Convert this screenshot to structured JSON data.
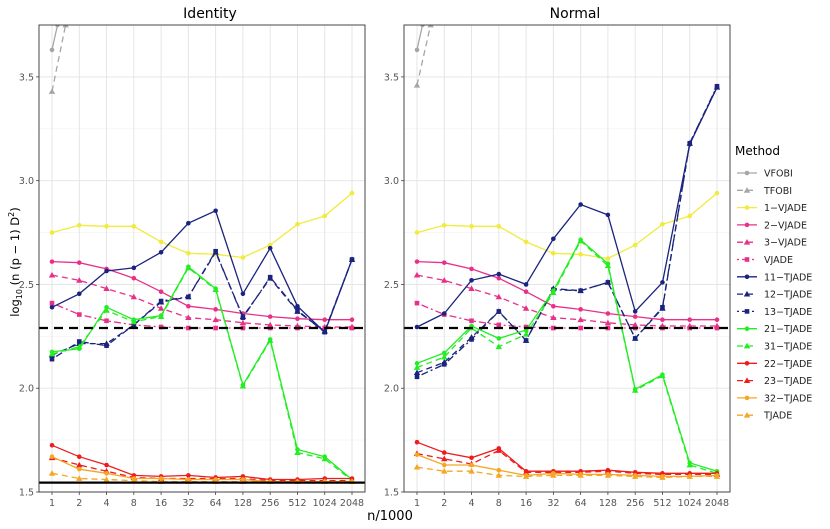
{
  "chart_data": {
    "type": "line",
    "ylabel_main": "log",
    "ylabel_sub": "10",
    "ylabel_rest": " (n (p − 1) D",
    "ylabel_sup": "2",
    "ylabel_close": ")",
    "xlabel": "n/1000",
    "x_ticks": [
      "1",
      "2",
      "4",
      "8",
      "16",
      "32",
      "64",
      "128",
      "256",
      "512",
      "1024",
      "2048"
    ],
    "ylim": [
      1.5,
      3.75
    ],
    "y_ticks": [
      "1.5",
      "2.0",
      "2.5",
      "3.0",
      "3.5"
    ],
    "y_tick_values": [
      1.5,
      2.0,
      2.5,
      3.0,
      3.5
    ],
    "legend_title": "Method",
    "legend_position": "right",
    "legend": [
      {
        "name": "VFOBI",
        "color": "#a6a6a6",
        "dash": "solid",
        "marker": "circle"
      },
      {
        "name": "TFOBI",
        "color": "#a6a6a6",
        "dash": "dash",
        "marker": "triangle"
      },
      {
        "name": "1−VJADE",
        "color": "#f0eb3c",
        "dash": "solid",
        "marker": "circle"
      },
      {
        "name": "2−VJADE",
        "color": "#e8308a",
        "dash": "solid",
        "marker": "circle"
      },
      {
        "name": "3−VJADE",
        "color": "#e8308a",
        "dash": "dash",
        "marker": "triangle"
      },
      {
        "name": "VJADE",
        "color": "#e8308a",
        "dash": "dotdash",
        "marker": "square"
      },
      {
        "name": "11−TJADE",
        "color": "#1a237e",
        "dash": "solid",
        "marker": "circle"
      },
      {
        "name": "12−TJADE",
        "color": "#1a237e",
        "dash": "dash",
        "marker": "triangle"
      },
      {
        "name": "13−TJADE",
        "color": "#1a237e",
        "dash": "dotdash",
        "marker": "square"
      },
      {
        "name": "21−TJADE",
        "color": "#22ee22",
        "dash": "solid",
        "marker": "circle"
      },
      {
        "name": "31−TJADE",
        "color": "#22ee22",
        "dash": "dash",
        "marker": "triangle"
      },
      {
        "name": "22−TJADE",
        "color": "#ee1c1c",
        "dash": "solid",
        "marker": "circle"
      },
      {
        "name": "23−TJADE",
        "color": "#ee1c1c",
        "dash": "dash",
        "marker": "triangle"
      },
      {
        "name": "32−TJADE",
        "color": "#f5a623",
        "dash": "solid",
        "marker": "circle"
      },
      {
        "name": "TJADE",
        "color": "#f5a623",
        "dash": "dash",
        "marker": "triangle"
      }
    ],
    "panels": [
      {
        "title": "Identity",
        "hlines": [
          {
            "y": 2.29,
            "style": "dash"
          },
          {
            "y": 1.545,
            "style": "solid"
          }
        ],
        "series": {
          "VFOBI": {
            "x": [
              0,
              0.2
            ],
            "y": [
              3.63,
              3.75
            ]
          },
          "TFOBI": {
            "x": [
              0,
              0.5
            ],
            "y": [
              3.43,
              3.75
            ]
          },
          "1−VJADE": [
            2.75,
            2.785,
            2.78,
            2.78,
            2.705,
            2.65,
            2.645,
            2.63,
            2.69,
            2.79,
            2.83,
            2.94
          ],
          "2−VJADE": [
            2.61,
            2.605,
            2.575,
            2.53,
            2.465,
            2.395,
            2.38,
            2.36,
            2.345,
            2.335,
            2.33,
            2.33
          ],
          "3−VJADE": [
            2.545,
            2.52,
            2.48,
            2.44,
            2.385,
            2.34,
            2.33,
            2.315,
            2.305,
            2.3,
            2.295,
            2.295
          ],
          "VJADE": [
            2.41,
            2.355,
            2.325,
            2.305,
            2.295,
            2.29,
            2.29,
            2.29,
            2.29,
            2.29,
            2.29,
            2.29
          ],
          "11−TJADE": [
            2.39,
            2.455,
            2.565,
            2.58,
            2.655,
            2.795,
            2.855,
            2.455,
            2.675,
            2.395,
            2.27,
            2.62
          ],
          "12−TJADE": [
            2.16,
            2.215,
            2.215,
            2.305,
            2.415,
            2.44,
            2.655,
            2.345,
            2.53,
            2.37,
            2.275,
            2.62
          ],
          "13−TJADE": [
            2.14,
            2.225,
            2.205,
            2.305,
            2.42,
            2.44,
            2.66,
            2.34,
            2.535,
            2.375,
            2.27,
            2.62
          ],
          "21−TJADE": [
            2.175,
            2.19,
            2.39,
            2.33,
            2.35,
            2.585,
            2.48,
            2.015,
            2.235,
            1.705,
            1.67,
            1.56
          ],
          "31−TJADE": [
            2.165,
            2.2,
            2.375,
            2.32,
            2.345,
            2.58,
            2.475,
            2.01,
            2.23,
            1.69,
            1.66,
            1.555
          ],
          "22−TJADE": [
            1.725,
            1.67,
            1.63,
            1.58,
            1.575,
            1.58,
            1.57,
            1.575,
            1.56,
            1.56,
            1.565,
            1.565
          ],
          "23−TJADE": [
            1.665,
            1.63,
            1.6,
            1.57,
            1.565,
            1.565,
            1.565,
            1.565,
            1.555,
            1.555,
            1.555,
            1.555
          ],
          "32−TJADE": [
            1.67,
            1.61,
            1.59,
            1.565,
            1.565,
            1.56,
            1.56,
            1.56,
            1.55,
            1.55,
            1.55,
            1.55
          ],
          "TJADE": [
            1.59,
            1.565,
            1.56,
            1.555,
            1.55,
            1.55,
            1.55,
            1.55,
            1.55,
            1.55,
            1.55,
            1.55
          ]
        }
      },
      {
        "title": "Normal",
        "hlines": [
          {
            "y": 2.29,
            "style": "dash"
          }
        ],
        "series": {
          "VFOBI": {
            "x": [
              0,
              0.2
            ],
            "y": [
              3.63,
              3.75
            ]
          },
          "TFOBI": {
            "x": [
              0,
              0.5
            ],
            "y": [
              3.46,
              3.75
            ]
          },
          "1−VJADE": [
            2.75,
            2.785,
            2.78,
            2.78,
            2.705,
            2.65,
            2.645,
            2.625,
            2.69,
            2.79,
            2.83,
            2.94
          ],
          "2−VJADE": [
            2.61,
            2.605,
            2.575,
            2.53,
            2.465,
            2.395,
            2.38,
            2.36,
            2.345,
            2.33,
            2.33,
            2.33
          ],
          "3−VJADE": [
            2.545,
            2.52,
            2.48,
            2.44,
            2.385,
            2.34,
            2.33,
            2.315,
            2.305,
            2.3,
            2.3,
            2.3
          ],
          "VJADE": [
            2.41,
            2.355,
            2.325,
            2.305,
            2.295,
            2.29,
            2.29,
            2.29,
            2.29,
            2.29,
            2.29,
            2.29
          ],
          "11−TJADE": [
            2.295,
            2.36,
            2.52,
            2.55,
            2.5,
            2.72,
            2.885,
            2.835,
            2.37,
            2.51,
            3.175,
            3.45
          ],
          "12−TJADE": [
            2.075,
            2.125,
            2.245,
            2.37,
            2.23,
            2.48,
            2.47,
            2.51,
            2.24,
            2.385,
            3.18,
            3.45
          ],
          "13−TJADE": [
            2.055,
            2.115,
            2.235,
            2.37,
            2.23,
            2.475,
            2.47,
            2.51,
            2.24,
            2.39,
            3.18,
            3.455
          ],
          "21−TJADE": [
            2.12,
            2.17,
            2.3,
            2.24,
            2.28,
            2.47,
            2.715,
            2.6,
            1.995,
            2.065,
            1.64,
            1.6
          ],
          "31−TJADE": [
            2.1,
            2.15,
            2.29,
            2.2,
            2.26,
            2.46,
            2.71,
            2.59,
            1.99,
            2.06,
            1.63,
            1.59
          ],
          "22−TJADE": [
            1.74,
            1.69,
            1.665,
            1.71,
            1.6,
            1.6,
            1.6,
            1.605,
            1.595,
            1.59,
            1.59,
            1.59
          ],
          "23−TJADE": [
            1.685,
            1.66,
            1.635,
            1.7,
            1.595,
            1.595,
            1.595,
            1.6,
            1.59,
            1.585,
            1.585,
            1.585
          ],
          "32−TJADE": [
            1.68,
            1.63,
            1.63,
            1.605,
            1.58,
            1.59,
            1.585,
            1.585,
            1.58,
            1.575,
            1.575,
            1.58
          ],
          "TJADE": [
            1.62,
            1.6,
            1.6,
            1.58,
            1.575,
            1.58,
            1.58,
            1.58,
            1.575,
            1.57,
            1.575,
            1.575
          ]
        }
      }
    ]
  }
}
